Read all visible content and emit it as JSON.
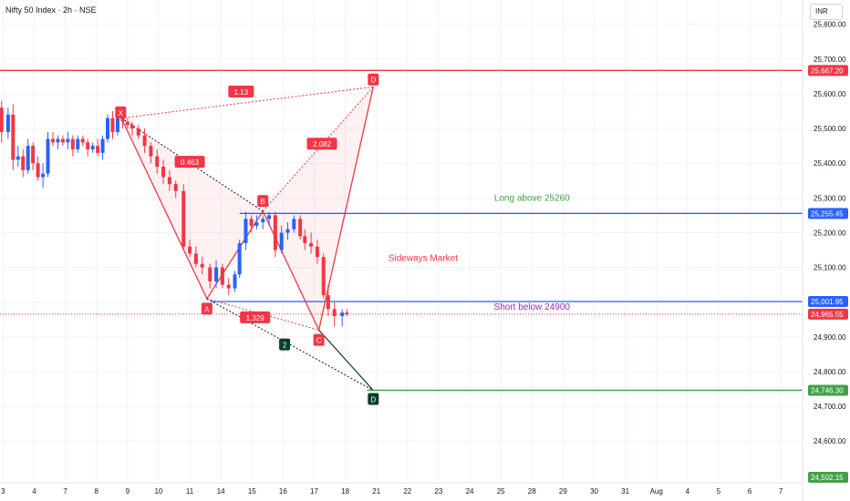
{
  "header": {
    "title": "Nifty 50 Index · 2h · NSE",
    "currency": "INR"
  },
  "colors": {
    "up": "#2962ff",
    "down": "#f23645",
    "grid": "#f0f3fa",
    "axis_text": "#131722",
    "resistance": "#f23645",
    "range": "#2962ff",
    "support": "#43a047",
    "pattern_fill": "#f23645",
    "label_dark": "#0b3d2e"
  },
  "chart_data": {
    "type": "candlestick",
    "title": "Nifty 50 Index · 2h · NSE",
    "y_axis": {
      "range": [
        24480,
        25870
      ],
      "ticks": [
        24600,
        24700,
        24800,
        24900,
        25000,
        25100,
        25200,
        25300,
        25400,
        25500,
        25600,
        25700,
        25800
      ],
      "tick_labels": [
        "24,600.00",
        "24,700.00",
        "24,800.00",
        "24,900.00",
        "25,000.00",
        "25,100.00",
        "25,200.00",
        "25,300.00",
        "25,400.00",
        "25,500.00",
        "25,600.00",
        "25,700.00",
        "25,800.00"
      ]
    },
    "x_axis": {
      "range": [
        -0.1,
        25.7
      ],
      "ticks": [
        0,
        1,
        2,
        3,
        4,
        5,
        6,
        7,
        8,
        9,
        10,
        11,
        12,
        13,
        14,
        15,
        16,
        17,
        18,
        19,
        20,
        21,
        22,
        23,
        24,
        25
      ],
      "tick_labels": [
        "3",
        "4",
        "7",
        "8",
        "9",
        "10",
        "11",
        "14",
        "15",
        "16",
        "17",
        "18",
        "21",
        "22",
        "23",
        "24",
        "25",
        "28",
        "29",
        "30",
        "31",
        "Aug",
        "4",
        "5",
        "6",
        "7"
      ]
    },
    "candles": [
      [
        -0.05,
        25560,
        25580,
        25460,
        25490
      ],
      [
        0.16,
        25490,
        25560,
        25470,
        25540
      ],
      [
        0.32,
        25540,
        25570,
        25380,
        25410
      ],
      [
        0.48,
        25410,
        25450,
        25390,
        25420
      ],
      [
        0.64,
        25420,
        25440,
        25360,
        25380
      ],
      [
        0.8,
        25380,
        25470,
        25370,
        25450
      ],
      [
        0.96,
        25450,
        25460,
        25380,
        25400
      ],
      [
        1.12,
        25400,
        25420,
        25350,
        25360
      ],
      [
        1.28,
        25360,
        25400,
        25330,
        25370
      ],
      [
        1.44,
        25370,
        25490,
        25360,
        25470
      ],
      [
        1.6,
        25470,
        25490,
        25450,
        25460
      ],
      [
        1.76,
        25460,
        25480,
        25440,
        25470
      ],
      [
        1.92,
        25470,
        25480,
        25450,
        25460
      ],
      [
        2.08,
        25460,
        25490,
        25440,
        25470
      ],
      [
        2.24,
        25470,
        25480,
        25420,
        25440
      ],
      [
        2.4,
        25440,
        25480,
        25430,
        25470
      ],
      [
        2.56,
        25470,
        25480,
        25450,
        25460
      ],
      [
        2.72,
        25460,
        25470,
        25420,
        25440
      ],
      [
        2.88,
        25440,
        25460,
        25430,
        25450
      ],
      [
        3.04,
        25450,
        25470,
        25420,
        25430
      ],
      [
        3.2,
        25430,
        25480,
        25410,
        25470
      ],
      [
        3.36,
        25470,
        25540,
        25460,
        25530
      ],
      [
        3.52,
        25530,
        25550,
        25470,
        25490
      ],
      [
        3.68,
        25490,
        25540,
        25480,
        25530
      ],
      [
        3.84,
        25530,
        25550,
        25500,
        25520
      ],
      [
        4.0,
        25520,
        25530,
        25500,
        25510
      ],
      [
        4.15,
        25510,
        25520,
        25480,
        25500
      ],
      [
        4.35,
        25500,
        25510,
        25470,
        25480
      ],
      [
        4.55,
        25480,
        25500,
        25430,
        25450
      ],
      [
        4.75,
        25450,
        25460,
        25400,
        25420
      ],
      [
        4.95,
        25420,
        25440,
        25370,
        25390
      ],
      [
        5.15,
        25390,
        25410,
        25340,
        25360
      ],
      [
        5.35,
        25360,
        25380,
        25320,
        25340
      ],
      [
        5.55,
        25340,
        25350,
        25300,
        25320
      ],
      [
        5.8,
        25320,
        25340,
        25150,
        25160
      ],
      [
        6.0,
        25160,
        25180,
        25130,
        25140
      ],
      [
        6.2,
        25140,
        25160,
        25100,
        25110
      ],
      [
        6.4,
        25110,
        25130,
        25080,
        25100
      ],
      [
        6.65,
        25100,
        25110,
        25040,
        25060
      ],
      [
        6.85,
        25060,
        25120,
        25040,
        25100
      ],
      [
        7.05,
        25100,
        25110,
        25040,
        25050
      ],
      [
        7.25,
        25050,
        25070,
        25020,
        25040
      ],
      [
        7.45,
        25040,
        25090,
        25030,
        25080
      ],
      [
        7.6,
        25080,
        25180,
        25070,
        25170
      ],
      [
        7.8,
        25170,
        25260,
        25150,
        25240
      ],
      [
        7.98,
        25240,
        25250,
        25200,
        25220
      ],
      [
        8.15,
        25220,
        25250,
        25210,
        25230
      ],
      [
        8.35,
        25230,
        25250,
        25210,
        25240
      ],
      [
        8.55,
        25240,
        25260,
        25220,
        25250
      ],
      [
        8.75,
        25250,
        25260,
        25130,
        25150
      ],
      [
        8.95,
        25150,
        25220,
        25140,
        25200
      ],
      [
        9.15,
        25200,
        25230,
        25180,
        25210
      ],
      [
        9.35,
        25210,
        25250,
        25200,
        25240
      ],
      [
        9.55,
        25240,
        25250,
        25180,
        25190
      ],
      [
        9.7,
        25190,
        25210,
        25150,
        25170
      ],
      [
        9.9,
        25170,
        25200,
        25140,
        25160
      ],
      [
        10.1,
        25160,
        25180,
        25110,
        25130
      ],
      [
        10.3,
        25130,
        25140,
        25010,
        25020
      ],
      [
        10.45,
        25020,
        25050,
        24960,
        24980
      ],
      [
        10.65,
        24980,
        25000,
        24930,
        24960
      ],
      [
        10.9,
        24960,
        24980,
        24930,
        24970
      ],
      [
        11.05,
        24970,
        24980,
        24960,
        24965
      ]
    ],
    "pattern_bullish_outline": {
      "X": [
        3.8,
        25530
      ],
      "A": [
        6.55,
        25010
      ],
      "B": [
        8.35,
        25262
      ],
      "C": [
        10.15,
        24920
      ],
      "D": [
        11.9,
        25620
      ]
    },
    "pattern_projection": {
      "A": [
        6.55,
        25010
      ],
      "B": [
        8.35,
        25262
      ],
      "C": [
        10.15,
        24920
      ],
      "D": [
        11.9,
        24746
      ]
    },
    "pattern_labels": [
      {
        "text": "X",
        "x": 3.78,
        "y": 25545,
        "dark": false
      },
      {
        "text": "A",
        "x": 6.55,
        "y": 24980,
        "dark": false
      },
      {
        "text": "B",
        "x": 8.35,
        "y": 25290,
        "dark": false
      },
      {
        "text": "C",
        "x": 10.15,
        "y": 24890,
        "dark": false
      },
      {
        "text": "D",
        "x": 11.9,
        "y": 25640,
        "dark": false
      },
      {
        "text": "D",
        "x": 11.9,
        "y": 24720,
        "dark": true
      },
      {
        "text": "2",
        "x": 9.05,
        "y": 24877,
        "dark": true
      }
    ],
    "ratios": [
      {
        "text": "1.13",
        "x": 7.65,
        "y": 25605
      },
      {
        "text": "0.463",
        "x": 6.0,
        "y": 25403
      },
      {
        "text": "2.082",
        "x": 10.25,
        "y": 25455
      },
      {
        "text": "1.329",
        "x": 8.1,
        "y": 24955
      }
    ],
    "levels": [
      {
        "value": 25667.2,
        "label": "25,667.20",
        "color_key": "resistance",
        "x_start": -0.1
      },
      {
        "value": 25255.45,
        "label": "25,255.45",
        "color_key": "range",
        "x_start": 7.6
      },
      {
        "value": 25001.95,
        "label": "25,001.95",
        "color_key": "range",
        "x_start": 6.7
      },
      {
        "value": 24746.3,
        "label": "24,746.30",
        "color_key": "support",
        "x_start": 11.7
      }
    ],
    "price_markers": [
      {
        "value": 24965.55,
        "label": "24,965.55",
        "color_key": "down"
      },
      {
        "value": 24502.15,
        "label": "24,502.15",
        "color_key": "support"
      }
    ],
    "annotations": [
      {
        "text": "Long above 25260",
        "x": 17.0,
        "y": 25292,
        "color_key": "support"
      },
      {
        "text": "Sideways Market",
        "x": 13.5,
        "y": 25118,
        "color_key": "down"
      },
      {
        "text": "Short below 24900",
        "x": 17.0,
        "y": 24978,
        "color_key": "purple"
      }
    ],
    "extra_colors": {
      "purple": "#9c27b0"
    }
  }
}
